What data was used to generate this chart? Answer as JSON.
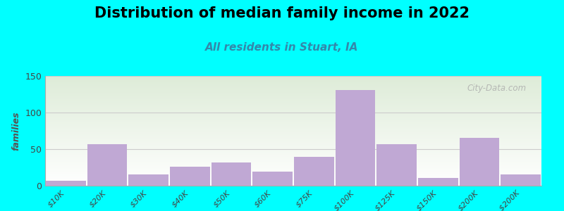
{
  "title": "Distribution of median family income in 2022",
  "subtitle": "All residents in Stuart, IA",
  "ylabel": "families",
  "categories": [
    "$10K",
    "$20K",
    "$30K",
    "$40K",
    "$50K",
    "$60K",
    "$75K",
    "$100K",
    "$125K",
    "$150K",
    "$200K",
    "> $200K"
  ],
  "values": [
    7,
    57,
    15,
    26,
    32,
    19,
    39,
    131,
    57,
    11,
    65,
    15
  ],
  "bar_color": "#c0a8d4",
  "background_color": "#00ffff",
  "plot_bg_top": "#deecd8",
  "plot_bg_bottom": "#ffffff",
  "ylim": [
    0,
    150
  ],
  "yticks": [
    0,
    50,
    100,
    150
  ],
  "title_fontsize": 15,
  "subtitle_fontsize": 11,
  "ylabel_fontsize": 9,
  "tick_fontsize": 8,
  "bar_width": 0.97,
  "watermark": "City-Data.com",
  "subtitle_color": "#3388aa",
  "ylabel_color": "#555555",
  "grid_color": "#cccccc"
}
